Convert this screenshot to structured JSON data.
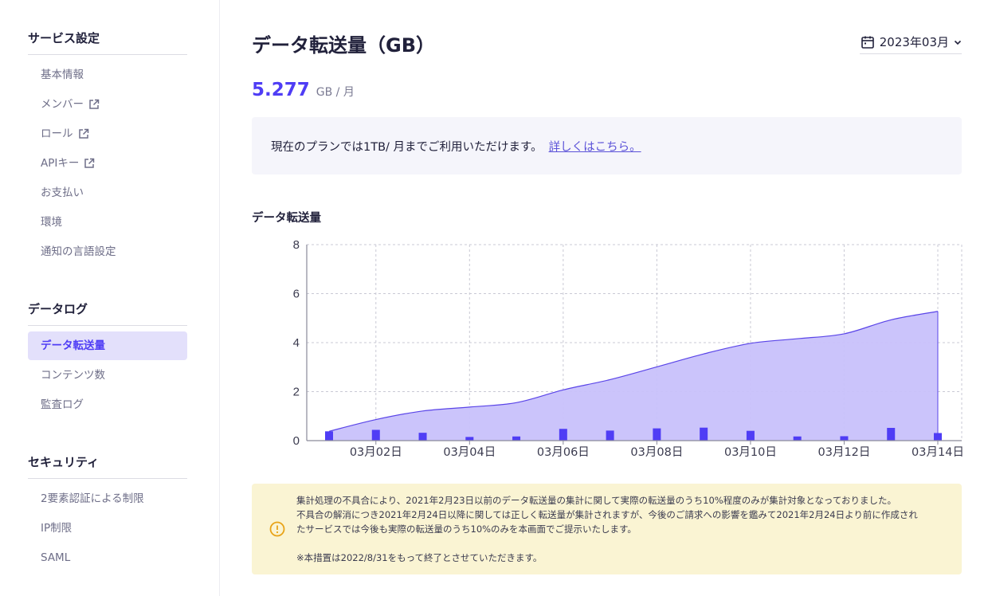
{
  "sidebar": {
    "sections": [
      {
        "title": "サービス設定",
        "items": [
          {
            "label": "基本情報",
            "external": false
          },
          {
            "label": "メンバー",
            "external": true
          },
          {
            "label": "ロール",
            "external": true
          },
          {
            "label": "APIキー",
            "external": true
          },
          {
            "label": "お支払い",
            "external": false
          },
          {
            "label": "環境",
            "external": false
          },
          {
            "label": "通知の言語設定",
            "external": false
          }
        ]
      },
      {
        "title": "データログ",
        "items": [
          {
            "label": "データ転送量",
            "active": true
          },
          {
            "label": "コンテンツ数",
            "active": false
          },
          {
            "label": "監査ログ",
            "active": false
          }
        ]
      },
      {
        "title": "セキュリティ",
        "items": [
          {
            "label": "2要素認証による制限"
          },
          {
            "label": "IP制限"
          },
          {
            "label": "SAML"
          }
        ]
      }
    ]
  },
  "header": {
    "title": "データ転送量（GB）",
    "month": "2023年03月",
    "month_icon": "calendar-icon"
  },
  "summary": {
    "value": "5.277",
    "unit": "GB / 月"
  },
  "plan": {
    "text": "現在のプランでは1TB/ 月までご利用いただけます。",
    "link": "詳しくはこちら。"
  },
  "chart_title": "データ転送量",
  "chart_data": {
    "type": "area",
    "x": [
      "03月01日",
      "03月02日",
      "03月03日",
      "03月04日",
      "03月05日",
      "03月06日",
      "03月07日",
      "03月08日",
      "03月09日",
      "03月10日",
      "03月11日",
      "03月12日",
      "03月13日",
      "03月14日"
    ],
    "tick_labels": [
      "03月02日",
      "03月04日",
      "03月06日",
      "03月08日",
      "03月10日",
      "03月12日",
      "03月14日"
    ],
    "series": [
      {
        "kind": "area",
        "values": [
          0.38,
          0.86,
          1.21,
          1.37,
          1.55,
          2.07,
          2.49,
          3.01,
          3.54,
          3.97,
          4.16,
          4.36,
          4.93,
          5.277
        ]
      },
      {
        "kind": "bar",
        "values": [
          0.38,
          0.44,
          0.32,
          0.15,
          0.17,
          0.48,
          0.41,
          0.5,
          0.53,
          0.4,
          0.17,
          0.18,
          0.52,
          0.31
        ]
      }
    ],
    "ylim": [
      0,
      8
    ],
    "yticks": [
      0,
      2,
      4,
      6,
      8
    ],
    "grid": true,
    "colors": {
      "area_fill": "#c8c1fb",
      "area_line": "#5a45e8",
      "bar": "#4f3df5",
      "grid": "#c9c9d4",
      "axis": "#8a8a9a"
    }
  },
  "notice": {
    "icon": "warning-circle-icon",
    "line1": "集計処理の不具合により、2021年2月23日以前のデータ転送量の集計に関して実際の転送量のうち10%程度のみが集計対象となっておりました。",
    "line2": "不具合の解消につき2021年2月24日以降に関しては正しく転送量が集計されますが、今後のご請求への影響を鑑みて2021年2月24日より前に作成され",
    "line3": "たサービスでは今後も実際の転送量のうち10%のみを本画面でご提示いたします。",
    "line4": "※本措置は2022/8/31をもって終了とさせていただきます。"
  }
}
